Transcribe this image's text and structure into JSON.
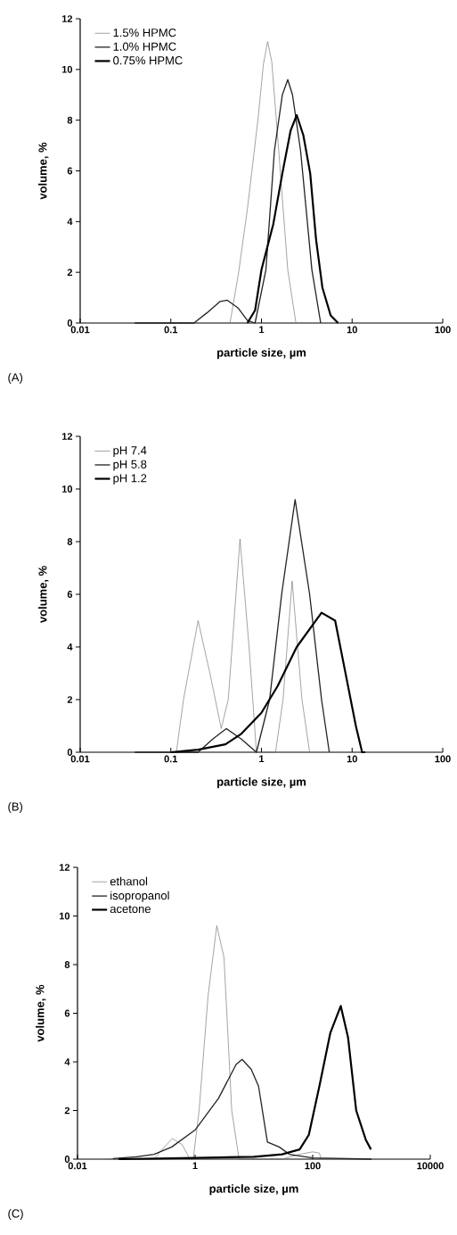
{
  "chart_data": [
    {
      "type": "line",
      "xlabel": "particle size, µm",
      "ylabel": "volume, %",
      "annotations": [
        "(A)"
      ],
      "log": "x",
      "legend": "top left",
      "xlim": [
        0.01,
        100
      ],
      "ylim": [
        0,
        12
      ],
      "xticks": [
        0.01,
        0.1,
        1,
        10,
        100
      ],
      "yticks": [
        0,
        2,
        4,
        6,
        8,
        10,
        12
      ],
      "series": [
        {
          "name": "1.5% HPMC",
          "color": "#666666",
          "x": [
            0.45,
            0.56,
            0.7,
            0.92,
            1.05,
            1.17,
            1.3,
            1.55,
            1.95,
            2.4
          ],
          "values": [
            0,
            2,
            4.5,
            8.1,
            10.2,
            11.1,
            10.3,
            6.8,
            2.1,
            0
          ]
        },
        {
          "name": "1.0% HPMC",
          "color": "#222222",
          "x": [
            0.04,
            0.18,
            0.25,
            0.35,
            0.42,
            0.55,
            0.7,
            0.85,
            1.12,
            1.39,
            1.7,
            1.95,
            2.2,
            2.7,
            3.6,
            4.5
          ],
          "values": [
            0,
            0,
            0.4,
            0.85,
            0.9,
            0.6,
            0.1,
            0,
            2.1,
            6.8,
            9,
            9.6,
            9,
            6.8,
            2.1,
            0
          ]
        },
        {
          "name": "0.75% HPMC",
          "color": "#000000",
          "x": [
            0.7,
            0.85,
            1,
            1.35,
            1.7,
            2.1,
            2.45,
            2.9,
            3.45,
            4,
            4.7,
            5.8,
            7
          ],
          "values": [
            0,
            0.5,
            2.1,
            3.9,
            5.9,
            7.6,
            8.2,
            7.4,
            5.9,
            3.3,
            1.4,
            0.3,
            0
          ]
        }
      ]
    },
    {
      "type": "line",
      "xlabel": "particle size, µm",
      "ylabel": "volume, %",
      "annotations": [
        "(B)"
      ],
      "log": "x",
      "legend": "top left",
      "xlim": [
        0.01,
        100
      ],
      "ylim": [
        0,
        12
      ],
      "xticks": [
        0.01,
        0.1,
        1,
        10,
        100
      ],
      "yticks": [
        0,
        2,
        4,
        6,
        8,
        10,
        12
      ],
      "series": [
        {
          "name": "pH 7.4",
          "color": "#666666",
          "x": [
            0.115,
            0.138,
            0.2,
            0.27,
            0.36,
            0.43,
            0.58,
            0.73,
            0.88,
            1.43,
            1.73,
            2.18,
            2.8,
            3.4
          ],
          "values": [
            0,
            2,
            5,
            3,
            0.9,
            2,
            8.1,
            4,
            0,
            0,
            2,
            6.5,
            2,
            0
          ]
        },
        {
          "name": "pH 5.8",
          "color": "#222222",
          "x": [
            0.04,
            0.2,
            0.29,
            0.41,
            0.6,
            0.88,
            1.23,
            1.67,
            2.35,
            3.4,
            4.6,
            5.6
          ],
          "values": [
            0,
            0,
            0.5,
            0.9,
            0.5,
            0,
            2,
            6,
            9.6,
            6,
            2,
            0
          ]
        },
        {
          "name": "pH 1.2",
          "color": "#000000",
          "x": [
            0.1,
            0.2,
            0.4,
            0.6,
            1,
            1.5,
            2.45,
            4.6,
            6.5,
            8.8,
            11,
            12.9,
            14
          ],
          "values": [
            0,
            0.1,
            0.3,
            0.7,
            1.5,
            2.5,
            4,
            5.3,
            5,
            2.7,
            1,
            0,
            0
          ]
        }
      ]
    },
    {
      "type": "line",
      "xlabel": "particle size, µm",
      "ylabel": "volume, %",
      "annotations": [
        "(C)"
      ],
      "log": "x",
      "legend": "top left",
      "xlim": [
        0.01,
        10000
      ],
      "ylim": [
        0,
        12
      ],
      "xticks": [
        0.01,
        1,
        100,
        10000
      ],
      "yticks": [
        0,
        2,
        4,
        6,
        8,
        10,
        12
      ],
      "series": [
        {
          "name": "ethanol",
          "color": "#666666",
          "x": [
            0.03,
            0.2,
            0.3,
            0.41,
            0.6,
            0.82,
            0.93,
            1.17,
            1.66,
            2.34,
            3.1,
            4.2,
            5.6,
            30,
            60,
            100,
            130,
            140
          ],
          "values": [
            0,
            0,
            0.5,
            0.85,
            0.6,
            0,
            0,
            2,
            6.7,
            9.6,
            8.3,
            2,
            0,
            0,
            0.2,
            0.3,
            0.25,
            0
          ]
        },
        {
          "name": "isopropanol",
          "color": "#222222",
          "x": [
            0.04,
            0.1,
            0.2,
            0.4,
            1,
            2.5,
            5,
            6.3,
            9,
            12,
            17,
            27,
            40,
            100,
            1000
          ],
          "values": [
            0.02,
            0.1,
            0.2,
            0.5,
            1.2,
            2.5,
            3.9,
            4.1,
            3.7,
            3,
            0.7,
            0.5,
            0.2,
            0.05,
            0
          ]
        },
        {
          "name": "acetone",
          "color": "#000000",
          "x": [
            0.05,
            1,
            10,
            30,
            60,
            86,
            130,
            200,
            300,
            400,
            550,
            800,
            980
          ],
          "values": [
            0,
            0.05,
            0.1,
            0.2,
            0.4,
            1,
            3,
            5.2,
            6.3,
            5,
            2,
            0.8,
            0.4
          ]
        }
      ]
    }
  ]
}
